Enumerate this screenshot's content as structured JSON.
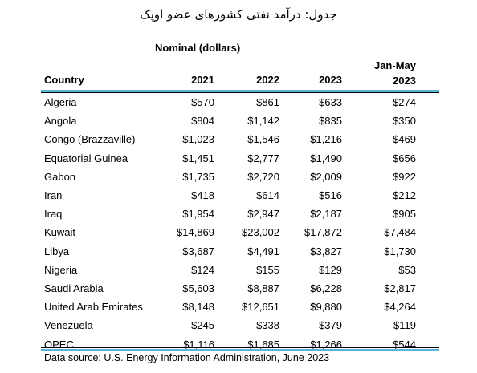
{
  "title": "جدول: درآمد نفتی کشورهای عضو اوپک",
  "group_header": "Nominal (dollars)",
  "columns": {
    "country": "Country",
    "y2021": "2021",
    "y2022": "2022",
    "y2023": "2023",
    "jan_may_line1": "Jan-May",
    "jan_may_line2": "2023"
  },
  "rows": [
    {
      "country": "Algeria",
      "v2021": "$570",
      "v2022": "$861",
      "v2023": "$633",
      "jm2023": "$274"
    },
    {
      "country": "Angola",
      "v2021": "$804",
      "v2022": "$1,142",
      "v2023": "$835",
      "jm2023": "$350"
    },
    {
      "country": "Congo (Brazzaville)",
      "v2021": "$1,023",
      "v2022": "$1,546",
      "v2023": "$1,216",
      "jm2023": "$469"
    },
    {
      "country": "Equatorial Guinea",
      "v2021": "$1,451",
      "v2022": "$2,777",
      "v2023": "$1,490",
      "jm2023": "$656"
    },
    {
      "country": "Gabon",
      "v2021": "$1,735",
      "v2022": "$2,720",
      "v2023": "$2,009",
      "jm2023": "$922"
    },
    {
      "country": "Iran",
      "v2021": "$418",
      "v2022": "$614",
      "v2023": "$516",
      "jm2023": "$212"
    },
    {
      "country": "Iraq",
      "v2021": "$1,954",
      "v2022": "$2,947",
      "v2023": "$2,187",
      "jm2023": "$905"
    },
    {
      "country": "Kuwait",
      "v2021": "$14,869",
      "v2022": "$23,002",
      "v2023": "$17,872",
      "jm2023": "$7,484"
    },
    {
      "country": "Libya",
      "v2021": "$3,687",
      "v2022": "$4,491",
      "v2023": "$3,827",
      "jm2023": "$1,730"
    },
    {
      "country": "Nigeria",
      "v2021": "$124",
      "v2022": "$155",
      "v2023": "$129",
      "jm2023": "$53"
    },
    {
      "country": "Saudi Arabia",
      "v2021": "$5,603",
      "v2022": "$8,887",
      "v2023": "$6,228",
      "jm2023": "$2,817"
    },
    {
      "country": "United Arab Emirates",
      "v2021": "$8,148",
      "v2022": "$12,651",
      "v2023": "$9,880",
      "jm2023": "$4,264"
    },
    {
      "country": "Venezuela",
      "v2021": "$245",
      "v2022": "$338",
      "v2023": "$379",
      "jm2023": "$119"
    },
    {
      "country": "OPEC",
      "v2021": "$1,116",
      "v2022": "$1,685",
      "v2023": "$1,266",
      "jm2023": "$544"
    }
  ],
  "source": "Data source: U.S. Energy Information Administration, June 2023",
  "colors": {
    "rule_accent": "#5ab4d8"
  }
}
